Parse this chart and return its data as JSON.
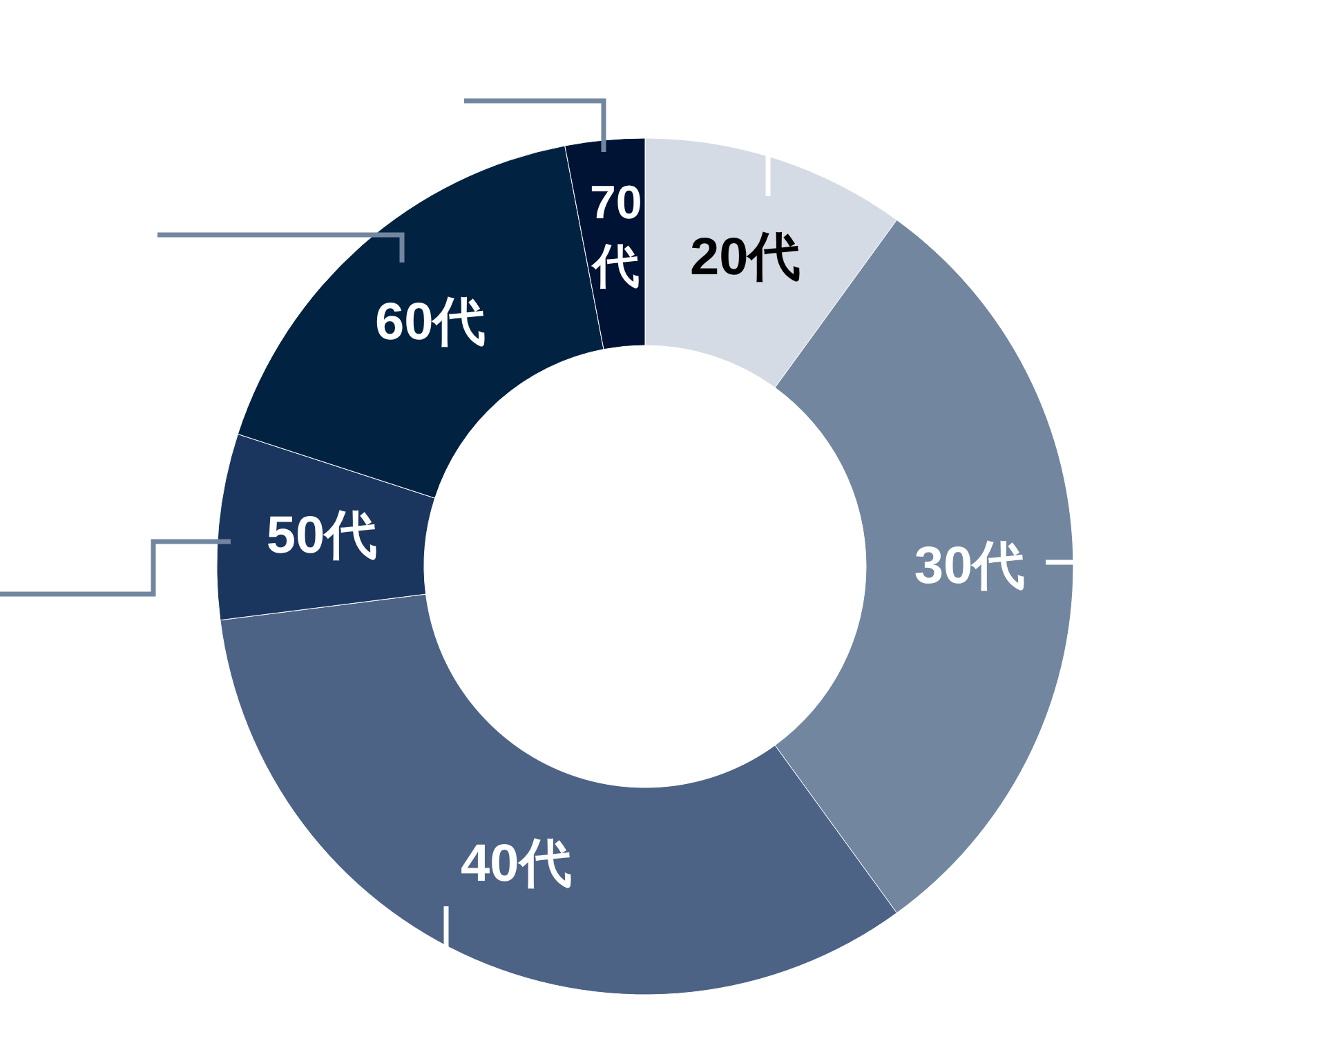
{
  "chart_data": {
    "type": "donut",
    "categories": [
      "20代",
      "30代",
      "40代",
      "50代",
      "60代",
      "70代"
    ],
    "values": [
      10,
      30,
      33,
      7,
      17,
      3
    ],
    "colors": [
      "#d4dbe4",
      "#7286a0",
      "#4c6385",
      "#1a365f",
      "#022242",
      "#001334"
    ]
  }
}
